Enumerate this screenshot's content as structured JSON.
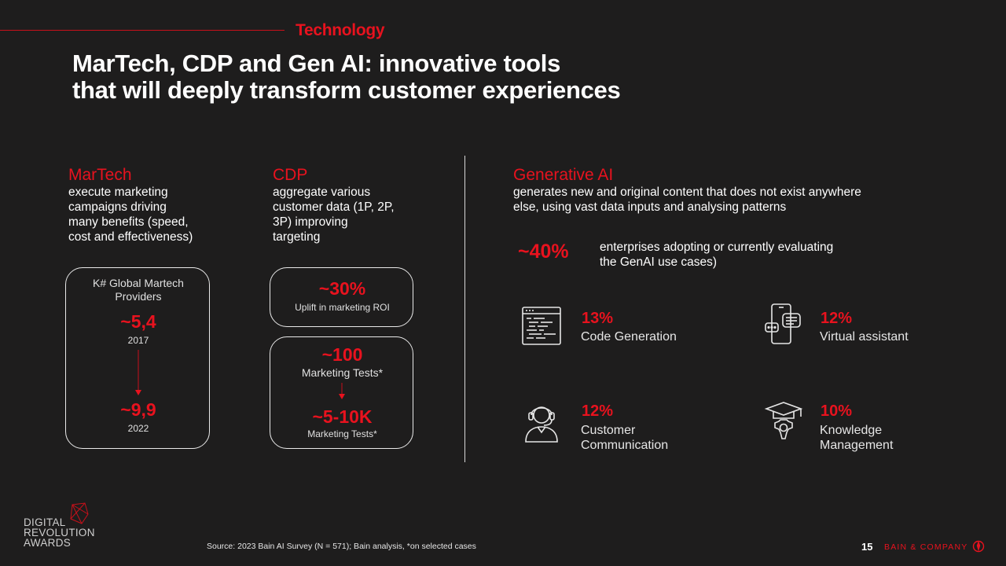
{
  "section": "Technology",
  "title_line1": "MarTech, CDP and Gen AI: innovative tools",
  "title_line2": "that will deeply transform customer experiences",
  "martech": {
    "heading": "MarTech",
    "desc": [
      "execute marketing",
      "campaigns driving",
      "many benefits (speed,",
      "cost and effectiveness)"
    ],
    "box_label": [
      "K# Global Martech",
      "Providers"
    ],
    "value1": "~5,4",
    "year1": "2017",
    "value2": "~9,9",
    "year2": "2022"
  },
  "cdp": {
    "heading": "CDP",
    "desc": [
      "aggregate various",
      "customer data (1P, 2P,",
      "3P) improving",
      "targeting"
    ],
    "box1_value": "~30%",
    "box1_label": "Uplift in marketing ROI",
    "box2_value1": "~100",
    "box2_label1": "Marketing Tests*",
    "box2_value2": "~5-10K",
    "box2_label2": "Marketing Tests*"
  },
  "genai": {
    "heading": "Generative AI",
    "desc": [
      "generates new and original content that does not exist anywhere",
      "else, using vast data inputs and analysing patterns"
    ],
    "stat_value": "~40%",
    "stat_text": [
      "enterprises adopting or currently evaluating",
      "the GenAI use cases)"
    ],
    "items": [
      {
        "pct": "13%",
        "label": [
          "Code Generation"
        ],
        "icon": "code-window-icon"
      },
      {
        "pct": "12%",
        "label": [
          "Virtual assistant"
        ],
        "icon": "phone-chat-icon"
      },
      {
        "pct": "12%",
        "label": [
          "Customer",
          "Communication"
        ],
        "icon": "headset-agent-icon"
      },
      {
        "pct": "10%",
        "label": [
          "Knowledge",
          "Management"
        ],
        "icon": "graduation-gear-icon"
      }
    ]
  },
  "footnote": "Source: 2023 Bain AI Survey (N = 571); Bain analysis, *on selected cases",
  "page_number": "15",
  "brand": "BAIN & COMPANY",
  "logo_text": [
    "DIGITAL",
    "REVOLUTION",
    "AWARDS"
  ],
  "colors": {
    "accent": "#e8121e",
    "background": "#1e1d1d"
  }
}
